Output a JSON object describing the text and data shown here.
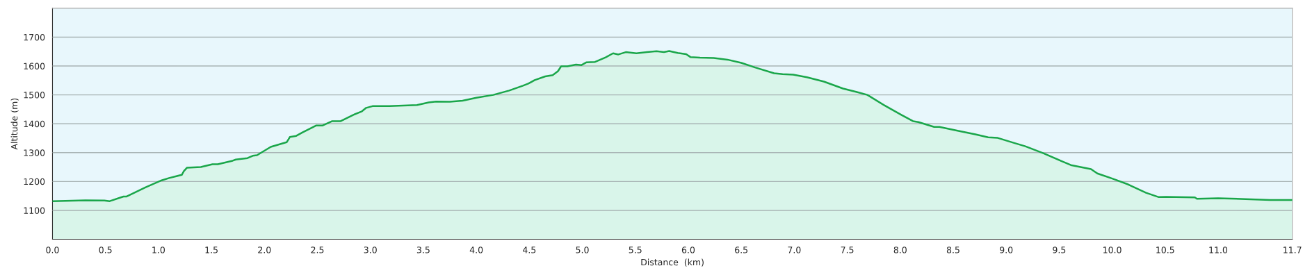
{
  "chart_data": {
    "type": "area",
    "xlabel": "Distance  (km)",
    "ylabel": "Altitude (m)",
    "x": [
      0,
      0.31,
      0.49,
      0.54,
      0.67,
      0.7,
      0.88,
      1.03,
      1.1,
      1.22,
      1.24,
      1.27,
      1.4,
      1.51,
      1.56,
      1.7,
      1.73,
      1.84,
      1.89,
      1.93,
      2.06,
      2.21,
      2.24,
      2.3,
      2.36,
      2.49,
      2.55,
      2.64,
      2.72,
      2.84,
      2.92,
      2.96,
      3.02,
      3.18,
      3.44,
      3.55,
      3.62,
      3.75,
      3.87,
      4.0,
      4.16,
      4.31,
      4.44,
      4.49,
      4.55,
      4.65,
      4.72,
      4.77,
      4.8,
      4.86,
      4.94,
      4.99,
      5.04,
      5.12,
      5.22,
      5.29,
      5.34,
      5.41,
      5.51,
      5.61,
      5.7,
      5.77,
      5.82,
      5.9,
      5.98,
      6.02,
      6.11,
      6.24,
      6.37,
      6.5,
      6.63,
      6.81,
      6.89,
      6.99,
      7.12,
      7.28,
      7.46,
      7.59,
      7.69,
      7.85,
      8.01,
      8.12,
      8.17,
      8.32,
      8.37,
      8.55,
      8.71,
      8.83,
      8.92,
      9.07,
      9.18,
      9.35,
      9.52,
      9.61,
      9.8,
      9.86,
      10.01,
      10.15,
      10.32,
      10.44,
      10.51,
      10.78,
      10.8,
      11.0,
      11.26,
      11.49,
      11.7
    ],
    "series": [
      {
        "color": "#1aa64a",
        "values": [
          1132,
          1135,
          1134,
          1132,
          1148,
          1148,
          1180,
          1204,
          1212,
          1223,
          1236,
          1248,
          1250,
          1260,
          1260,
          1272,
          1276,
          1281,
          1289,
          1291,
          1320,
          1336,
          1354,
          1358,
          1370,
          1394,
          1394,
          1409,
          1409,
          1431,
          1443,
          1455,
          1461,
          1461,
          1465,
          1474,
          1477,
          1476,
          1480,
          1490,
          1500,
          1515,
          1532,
          1539,
          1551,
          1564,
          1568,
          1582,
          1599,
          1599,
          1605,
          1603,
          1613,
          1614,
          1630,
          1644,
          1640,
          1648,
          1644,
          1648,
          1651,
          1648,
          1652,
          1645,
          1641,
          1631,
          1629,
          1628,
          1622,
          1611,
          1595,
          1575,
          1572,
          1570,
          1561,
          1546,
          1522,
          1510,
          1500,
          1464,
          1431,
          1409,
          1406,
          1389,
          1389,
          1375,
          1363,
          1353,
          1351,
          1334,
          1322,
          1298,
          1271,
          1257,
          1243,
          1228,
          1209,
          1190,
          1161,
          1146,
          1147,
          1145,
          1140,
          1142,
          1139,
          1136,
          1136
        ]
      }
    ],
    "xlim": [
      0,
      11.7
    ],
    "xticks": [
      {
        "value": 0,
        "label": "0.0"
      },
      0.5,
      {
        "value": 1,
        "label": "1.0"
      },
      1.5,
      {
        "value": 2,
        "label": "2.0"
      },
      2.5,
      {
        "value": 3,
        "label": "3.0"
      },
      3.5,
      {
        "value": 4,
        "label": "4.0"
      },
      4.5,
      {
        "value": 5,
        "label": "5.0"
      },
      5.5,
      {
        "value": 6,
        "label": "6.0"
      },
      6.5,
      {
        "value": 7,
        "label": "7.0"
      },
      7.5,
      {
        "value": 8,
        "label": "8.0"
      },
      8.5,
      {
        "value": 9,
        "label": "9.0"
      },
      9.5,
      {
        "value": 10,
        "label": "10.0"
      },
      10.5,
      {
        "value": 11,
        "label": "11.0"
      },
      11.7
    ],
    "ylim": [
      1000,
      1800
    ],
    "yticks": [
      1100,
      1200,
      1300,
      1400,
      1500,
      1600,
      1700
    ],
    "grid": "y"
  }
}
